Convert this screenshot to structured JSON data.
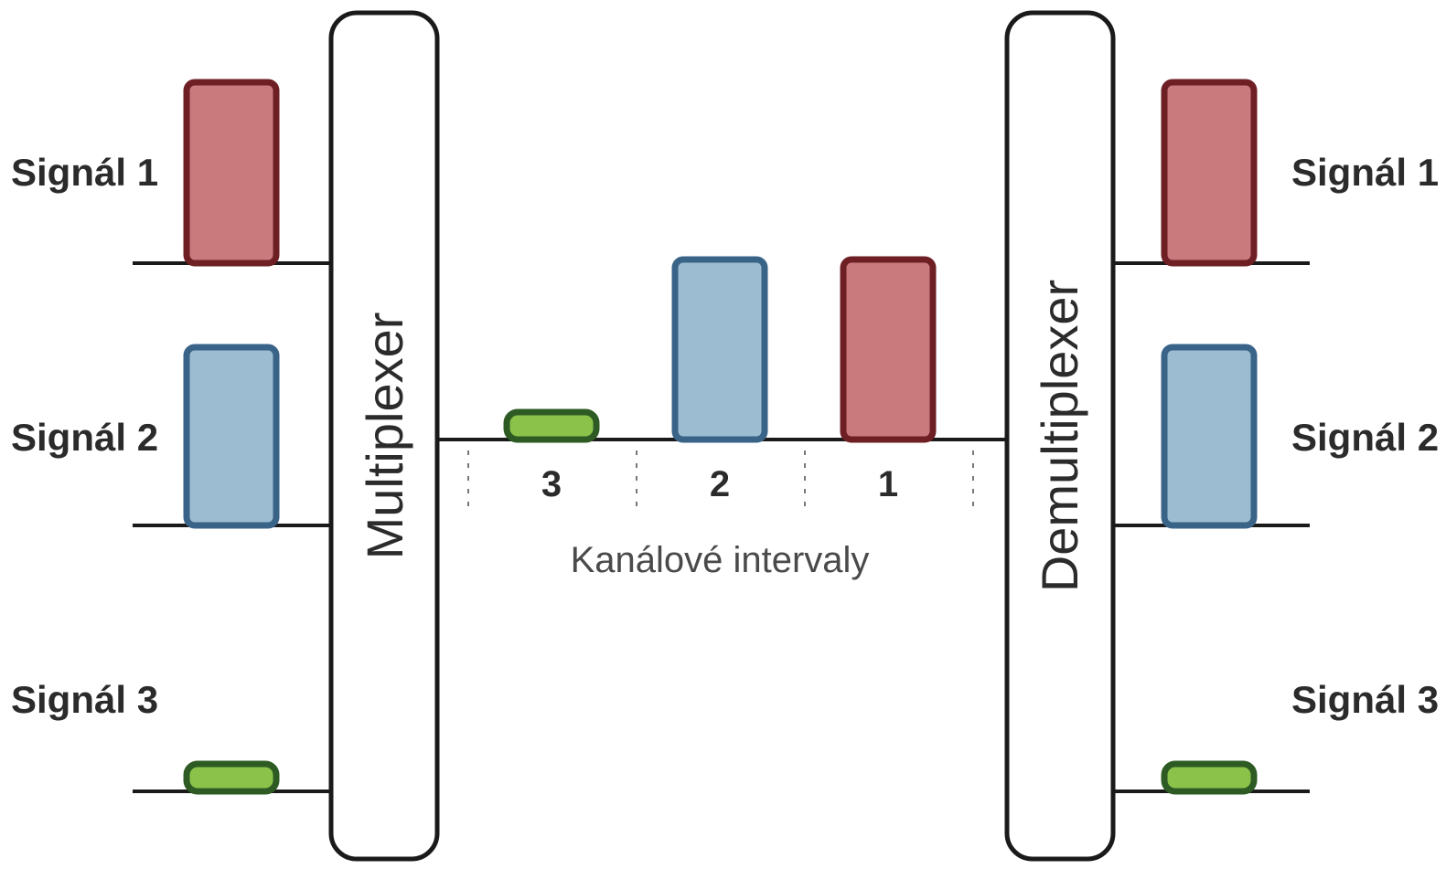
{
  "colors": {
    "signal_1": {
      "fill": "#c97a7d",
      "stroke": "#6e1f23"
    },
    "signal_2": {
      "fill": "#9cbdd1",
      "stroke": "#3a6388"
    },
    "signal_3": {
      "fill": "#8bc34a",
      "stroke": "#2e5b24"
    },
    "box_stroke": "#1a1a1a",
    "line": "#1a1a1a"
  },
  "multiplexer": {
    "label": "Multiplexer"
  },
  "demultiplexer": {
    "label": "Demultiplexer"
  },
  "inputs": [
    {
      "label": "Signál 1",
      "signal": "signal_1",
      "level": "high"
    },
    {
      "label": "Signál 2",
      "signal": "signal_2",
      "level": "high"
    },
    {
      "label": "Signál 3",
      "signal": "signal_3",
      "level": "low"
    }
  ],
  "outputs": [
    {
      "label": "Signál 1",
      "signal": "signal_1",
      "level": "high"
    },
    {
      "label": "Signál 2",
      "signal": "signal_2",
      "level": "high"
    },
    {
      "label": "Signál 3",
      "signal": "signal_3",
      "level": "low"
    }
  ],
  "channel": {
    "caption": "Kanálové intervaly",
    "slots": [
      {
        "label": "3",
        "signal": "signal_3",
        "level": "low"
      },
      {
        "label": "2",
        "signal": "signal_2",
        "level": "high"
      },
      {
        "label": "1",
        "signal": "signal_1",
        "level": "high"
      }
    ]
  }
}
